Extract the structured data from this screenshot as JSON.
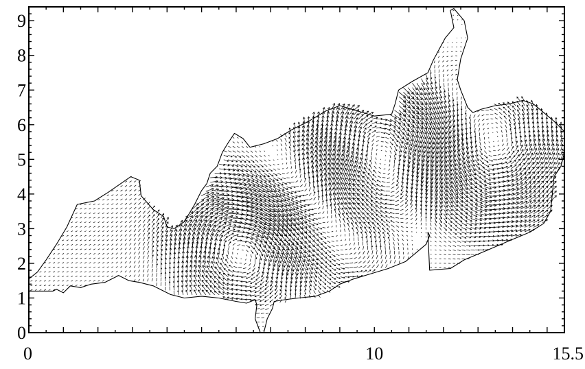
{
  "chart_data": {
    "type": "vector field",
    "title": "",
    "xlabel": "",
    "ylabel": "",
    "xlim": [
      0,
      15.5
    ],
    "ylim": [
      0,
      9.4
    ],
    "x_tick_labels": [
      {
        "value": 0,
        "label": "0"
      },
      {
        "value": 10,
        "label": "10"
      },
      {
        "value": 15.5,
        "label": "15.5"
      }
    ],
    "y_tick_labels": [
      {
        "value": 0,
        "label": "0"
      },
      {
        "value": 1,
        "label": "1"
      },
      {
        "value": 2,
        "label": "2"
      },
      {
        "value": 3,
        "label": "3"
      },
      {
        "value": 4,
        "label": "4"
      },
      {
        "value": 5,
        "label": "5"
      },
      {
        "value": 6,
        "label": "6"
      },
      {
        "value": 7,
        "label": "7"
      },
      {
        "value": 8,
        "label": "8"
      },
      {
        "value": 9,
        "label": "9"
      }
    ],
    "x_major_tick_step": 1,
    "x_minor_tick_step": 0.5,
    "y_major_tick_step": 1,
    "y_minor_tick_step": 0.2,
    "grid": false,
    "coastline": [
      [
        0,
        1.2
      ],
      [
        0.7,
        1.2
      ],
      [
        0.8,
        1.25
      ],
      [
        1.0,
        1.15
      ],
      [
        1.2,
        1.35
      ],
      [
        1.5,
        1.3
      ],
      [
        1.8,
        1.4
      ],
      [
        2.2,
        1.45
      ],
      [
        2.6,
        1.65
      ],
      [
        2.9,
        1.5
      ],
      [
        3.2,
        1.45
      ],
      [
        3.6,
        1.35
      ],
      [
        4.1,
        1.1
      ],
      [
        4.5,
        1.0
      ],
      [
        5.0,
        1.05
      ],
      [
        5.5,
        1.0
      ],
      [
        6.0,
        0.9
      ],
      [
        6.3,
        0.85
      ],
      [
        6.55,
        0.95
      ],
      [
        6.6,
        0.8
      ],
      [
        6.55,
        0.4
      ],
      [
        6.7,
        0.0
      ],
      [
        6.8,
        0.0
      ],
      [
        6.9,
        0.4
      ],
      [
        7.05,
        0.7
      ],
      [
        7.1,
        0.9
      ],
      [
        7.4,
        0.95
      ],
      [
        7.8,
        1.0
      ],
      [
        8.3,
        1.05
      ],
      [
        8.7,
        1.2
      ],
      [
        9.0,
        1.4
      ],
      [
        9.4,
        1.55
      ],
      [
        9.9,
        1.7
      ],
      [
        10.4,
        1.85
      ],
      [
        10.9,
        2.05
      ],
      [
        11.2,
        2.3
      ],
      [
        11.5,
        2.55
      ],
      [
        11.6,
        2.8
      ],
      [
        11.55,
        2.9
      ],
      [
        11.6,
        1.8
      ],
      [
        12.2,
        1.85
      ],
      [
        12.6,
        2.1
      ],
      [
        13.2,
        2.35
      ],
      [
        13.9,
        2.65
      ],
      [
        14.5,
        2.9
      ],
      [
        14.9,
        3.15
      ],
      [
        15.1,
        3.5
      ],
      [
        15.15,
        4.0
      ],
      [
        15.2,
        4.5
      ],
      [
        15.4,
        4.8
      ],
      [
        15.5,
        5.2
      ],
      [
        15.5,
        5.8
      ],
      [
        15.2,
        6.1
      ],
      [
        14.9,
        6.35
      ],
      [
        14.6,
        6.6
      ],
      [
        14.3,
        6.7
      ],
      [
        13.9,
        6.6
      ],
      [
        13.5,
        6.55
      ],
      [
        13.1,
        6.45
      ],
      [
        12.85,
        6.35
      ],
      [
        12.7,
        6.5
      ],
      [
        12.5,
        7.0
      ],
      [
        12.4,
        7.3
      ],
      [
        12.5,
        7.9
      ],
      [
        12.7,
        8.5
      ],
      [
        12.6,
        9.0
      ],
      [
        12.3,
        9.35
      ],
      [
        12.2,
        9.3
      ],
      [
        12.3,
        8.8
      ],
      [
        12.05,
        8.5
      ],
      [
        11.7,
        7.85
      ],
      [
        11.55,
        7.5
      ],
      [
        11.1,
        7.25
      ],
      [
        10.7,
        7.0
      ],
      [
        10.6,
        6.6
      ],
      [
        10.5,
        6.3
      ],
      [
        10.0,
        6.25
      ],
      [
        9.5,
        6.4
      ],
      [
        9.0,
        6.55
      ],
      [
        8.6,
        6.4
      ],
      [
        8.1,
        6.1
      ],
      [
        7.6,
        5.85
      ],
      [
        7.2,
        5.6
      ],
      [
        6.8,
        5.45
      ],
      [
        6.4,
        5.35
      ],
      [
        6.2,
        5.6
      ],
      [
        5.95,
        5.75
      ],
      [
        5.75,
        5.45
      ],
      [
        5.6,
        5.2
      ],
      [
        5.45,
        4.8
      ],
      [
        5.25,
        4.6
      ],
      [
        5.15,
        4.3
      ],
      [
        5.0,
        4.1
      ],
      [
        4.8,
        3.7
      ],
      [
        4.5,
        3.2
      ],
      [
        4.2,
        3.0
      ],
      [
        4.0,
        3.05
      ],
      [
        3.9,
        3.35
      ],
      [
        3.6,
        3.55
      ],
      [
        3.25,
        3.95
      ],
      [
        3.2,
        4.4
      ],
      [
        2.95,
        4.5
      ],
      [
        2.3,
        4.05
      ],
      [
        1.9,
        3.8
      ],
      [
        1.4,
        3.7
      ],
      [
        1.1,
        3.05
      ],
      [
        0.8,
        2.55
      ],
      [
        0.5,
        2.1
      ],
      [
        0.25,
        1.75
      ],
      [
        0,
        1.55
      ]
    ]
  }
}
